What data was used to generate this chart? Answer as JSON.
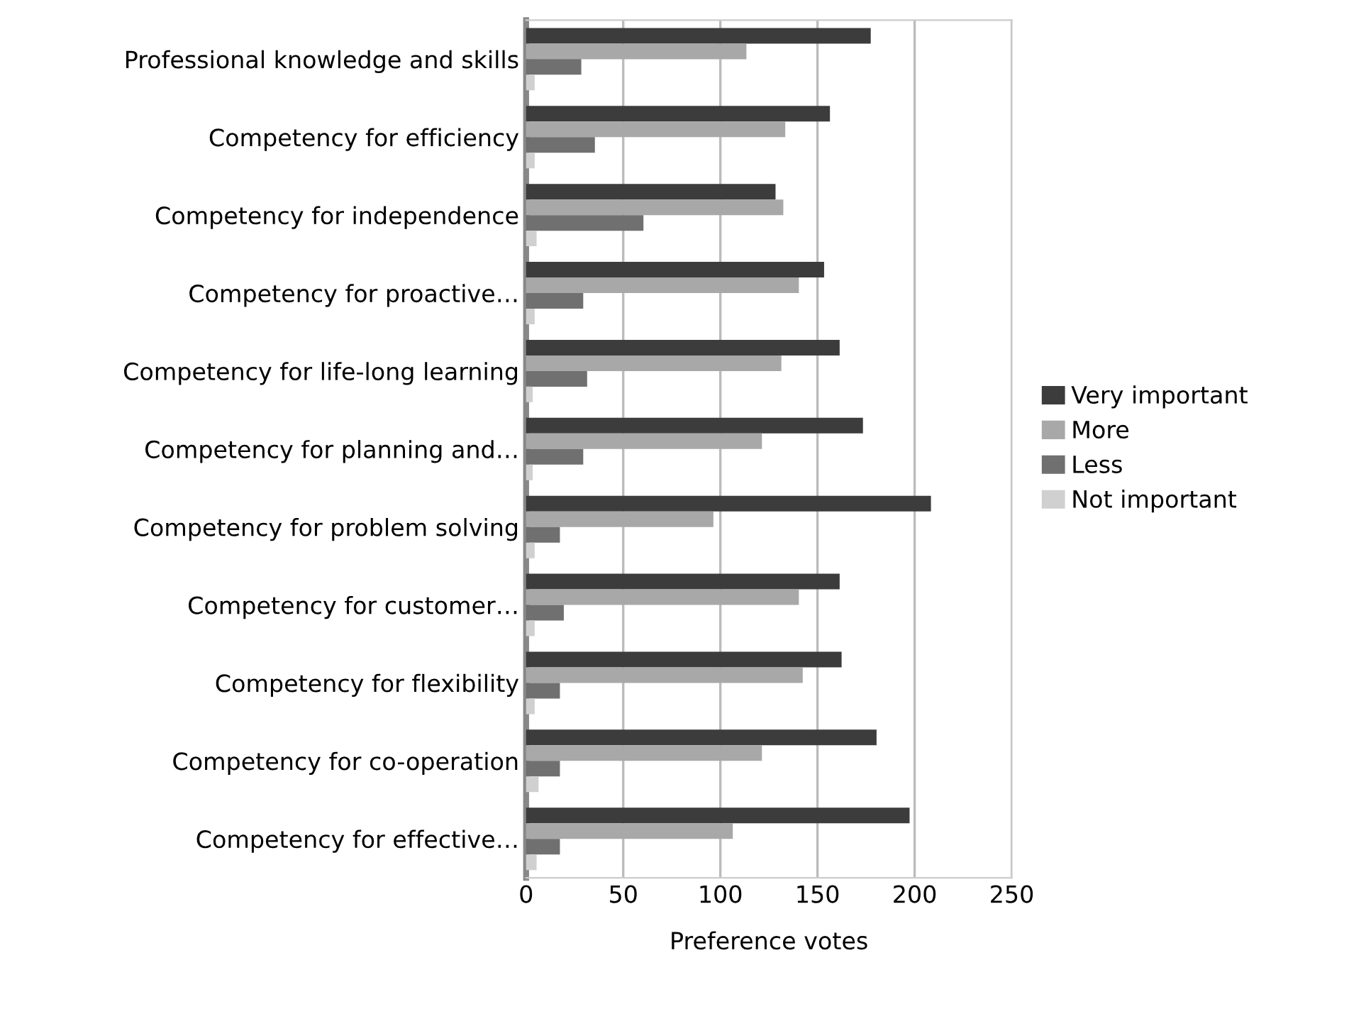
{
  "chart_data": {
    "type": "bar",
    "orientation": "horizontal",
    "xlabel": "Preference votes",
    "categories": [
      "Professional knowledge and skills",
      "Competency for efficiency",
      "Competency for independence",
      "Competency for proactive…",
      "Competency for life-long learning",
      "Competency for planning and…",
      "Competency for problem solving",
      "Competency for customer…",
      "Competency for flexibility",
      "Competency for co-operation",
      "Competency for effective…"
    ],
    "series": [
      {
        "name": "Very important",
        "color": "#3c3c3c",
        "values": [
          177,
          156,
          128,
          153,
          161,
          173,
          208,
          161,
          162,
          180,
          197
        ]
      },
      {
        "name": "More",
        "color": "#a8a8a8",
        "values": [
          113,
          133,
          132,
          140,
          131,
          121,
          96,
          140,
          142,
          121,
          106
        ]
      },
      {
        "name": "Less",
        "color": "#707070",
        "values": [
          28,
          35,
          60,
          29,
          31,
          29,
          17,
          19,
          17,
          17,
          17
        ]
      },
      {
        "name": "Not important",
        "color": "#d0d0d0",
        "values": [
          4,
          4,
          5,
          4,
          3,
          3,
          4,
          4,
          4,
          6,
          5
        ]
      }
    ],
    "xlim": [
      0,
      250
    ],
    "xticks": [
      0,
      50,
      100,
      150,
      200,
      250
    ],
    "grid": "x",
    "legend": "right"
  }
}
